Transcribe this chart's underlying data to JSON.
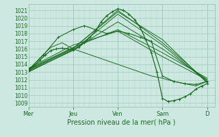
{
  "xlabel": "Pression niveau de la mer( hPa )",
  "ylim": [
    1008.5,
    1021.8
  ],
  "yticks": [
    1009,
    1010,
    1011,
    1012,
    1013,
    1014,
    1015,
    1016,
    1017,
    1018,
    1019,
    1020,
    1021
  ],
  "day_labels": [
    "Mer",
    "Jeu",
    "Ven",
    "Sam",
    "D"
  ],
  "day_positions": [
    0,
    24,
    48,
    72,
    96
  ],
  "background_color": "#cce8e0",
  "grid_color_major": "#a0c8b8",
  "grid_color_minor": "#b8d8cc",
  "line_color": "#1a6b20",
  "lines": [
    {
      "x": [
        0,
        3,
        6,
        9,
        12,
        15,
        18,
        21,
        24,
        27,
        30,
        33,
        36,
        39,
        42,
        45,
        48,
        51,
        54,
        57,
        60,
        63,
        66,
        69,
        72,
        75,
        78,
        81,
        84,
        87,
        90,
        93,
        96
      ],
      "y": [
        1013.2,
        1013.8,
        1014.5,
        1015.2,
        1015.8,
        1016.0,
        1016.1,
        1016.0,
        1015.9,
        1016.2,
        1016.8,
        1017.5,
        1018.3,
        1019.5,
        1020.3,
        1020.8,
        1021.2,
        1021.0,
        1020.5,
        1019.8,
        1018.8,
        1017.2,
        1015.5,
        1013.0,
        1009.6,
        1009.2,
        1009.3,
        1009.5,
        1009.8,
        1010.2,
        1010.8,
        1011.2,
        1011.5
      ]
    },
    {
      "x": [
        0,
        24,
        48,
        72,
        96
      ],
      "y": [
        1013.2,
        1016.0,
        1021.0,
        1016.8,
        1011.8
      ]
    },
    {
      "x": [
        0,
        24,
        48,
        72,
        96
      ],
      "y": [
        1013.3,
        1016.1,
        1020.8,
        1017.2,
        1011.6
      ]
    },
    {
      "x": [
        0,
        24,
        48,
        72,
        96
      ],
      "y": [
        1013.1,
        1015.8,
        1020.5,
        1016.5,
        1011.7
      ]
    },
    {
      "x": [
        0,
        24,
        48,
        72,
        96
      ],
      "y": [
        1013.0,
        1015.9,
        1019.5,
        1016.0,
        1012.0
      ]
    },
    {
      "x": [
        0,
        24,
        48,
        72,
        96
      ],
      "y": [
        1013.4,
        1016.2,
        1018.5,
        1015.5,
        1012.2
      ]
    },
    {
      "x": [
        0,
        24,
        48,
        72,
        96
      ],
      "y": [
        1013.5,
        1016.5,
        1018.3,
        1015.0,
        1012.0
      ]
    },
    {
      "x": [
        0,
        8,
        16,
        24,
        30,
        36,
        42,
        48,
        54,
        60,
        66,
        72,
        78,
        84,
        90,
        96
      ],
      "y": [
        1013.3,
        1015.2,
        1017.5,
        1018.5,
        1019.0,
        1018.5,
        1018.0,
        1018.3,
        1018.0,
        1017.5,
        1017.0,
        1012.5,
        1011.8,
        1011.5,
        1011.4,
        1011.8
      ]
    },
    {
      "x": [
        0,
        6,
        12,
        18,
        24,
        30,
        36,
        42,
        48,
        54,
        60,
        66,
        72,
        78,
        84,
        90,
        96
      ],
      "y": [
        1013.2,
        1014.8,
        1016.2,
        1016.8,
        1016.0,
        1015.5,
        1015.0,
        1014.5,
        1014.0,
        1013.5,
        1013.0,
        1012.5,
        1012.2,
        1011.8,
        1011.5,
        1011.2,
        1011.8
      ]
    }
  ]
}
